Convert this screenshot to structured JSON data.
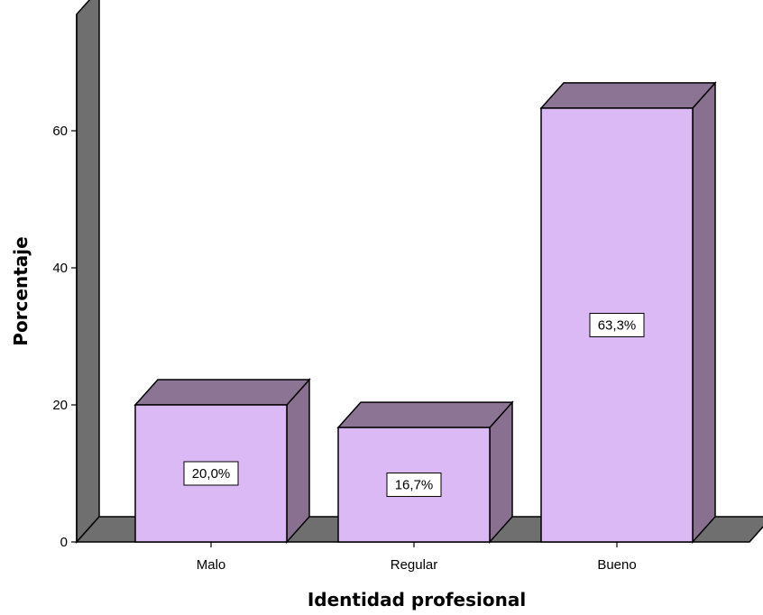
{
  "chart_data": {
    "type": "bar",
    "style": "3d",
    "title": "",
    "xlabel": "Identidad profesional",
    "ylabel": "Porcentaje",
    "categories": [
      "Malo",
      "Regular",
      "Bueno"
    ],
    "values": [
      20.0,
      16.7,
      63.3
    ],
    "data_labels": [
      "20,0%",
      "16,7%",
      "63,3%"
    ],
    "yticks": [
      0,
      20,
      40,
      60
    ],
    "ylim": [
      0,
      77
    ],
    "grid": false,
    "legend": "none"
  },
  "colors": {
    "bar_front": "#dbb9f5",
    "bar_top": "#8c7495",
    "bar_side": "#8a7090",
    "wall": "#6f6f6f",
    "floor": "#6f6f6f",
    "outline": "#000000",
    "label_box": "#ffffff"
  }
}
